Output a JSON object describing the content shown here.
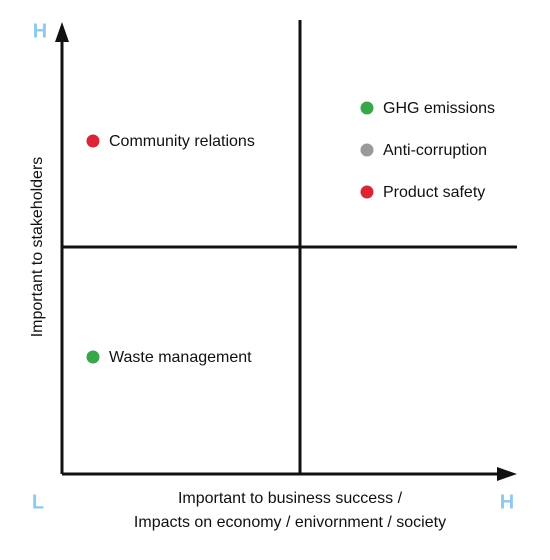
{
  "axes": {
    "y_label": "Important to stakeholders",
    "x_label_lines": [
      "Important to business success /",
      "Impacts on economy / enivornment / society"
    ],
    "y_high": "H",
    "origin_low": "L",
    "x_high": "H"
  },
  "items": [
    {
      "label": "GHG emissions",
      "color": "#3aa64a"
    },
    {
      "label": "Anti-corruption",
      "color": "#9a9a9a"
    },
    {
      "label": "Product safety",
      "color": "#d92636"
    },
    {
      "label": "Community relations",
      "color": "#d92636"
    },
    {
      "label": "Waste management",
      "color": "#3aa64a"
    }
  ]
}
